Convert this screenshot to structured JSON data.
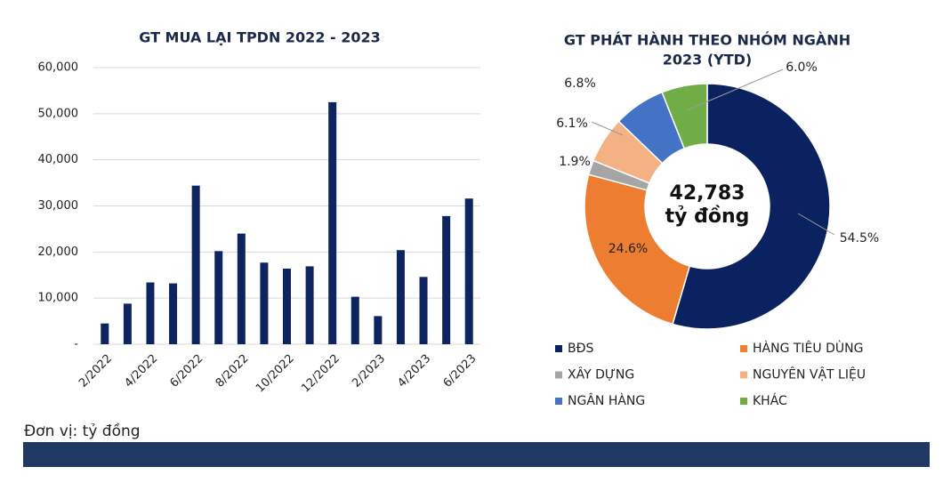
{
  "note": "Đơn vị: tỷ đồng",
  "chart_data": [
    {
      "type": "bar",
      "title": "GT MUA LẠI TPDN 2022 - 2023",
      "categories": [
        "2/2022",
        null,
        "4/2022",
        null,
        "6/2022",
        null,
        "8/2022",
        null,
        "10/2022",
        null,
        "12/2022",
        null,
        "2/2023",
        null,
        "4/2023",
        null,
        "6/2023"
      ],
      "values": [
        4500,
        8800,
        13400,
        13200,
        34400,
        20200,
        24000,
        17700,
        16400,
        16900,
        52500,
        10300,
        6100,
        20400,
        14600,
        27800,
        31600
      ],
      "color": "#0d2461",
      "ylim": [
        0,
        60000
      ],
      "yticks": [
        {
          "value": 0,
          "label": "-"
        },
        {
          "value": 10000,
          "label": "10,000"
        },
        {
          "value": 20000,
          "label": "20,000"
        },
        {
          "value": 30000,
          "label": "30,000"
        },
        {
          "value": 40000,
          "label": "40,000"
        },
        {
          "value": 50000,
          "label": "50,000"
        },
        {
          "value": 60000,
          "label": "60,000"
        }
      ],
      "grid": true
    },
    {
      "type": "pie",
      "title": [
        "GT PHÁT HÀNH THEO NHÓM NGÀNH",
        "2023 (YTD)"
      ],
      "center_text": [
        "42,783",
        "tỷ đồng"
      ],
      "categories": [
        "BĐS",
        "HÀNG TIÊU DÙNG",
        "XÂY DỰNG",
        "NGUYÊN VẬT LIỆU",
        "NGÂN HÀNG",
        "KHÁC"
      ],
      "values": [
        54.5,
        24.6,
        1.9,
        6.1,
        6.8,
        6.0
      ],
      "value_labels": [
        "54.5%",
        "24.6%",
        "1.9%",
        "6.1%",
        "6.8%",
        "6.0%"
      ],
      "colors": [
        "#0b2260",
        "#ed7d31",
        "#a5a5a5",
        "#f4b183",
        "#4472c4",
        "#70ad47"
      ]
    }
  ]
}
